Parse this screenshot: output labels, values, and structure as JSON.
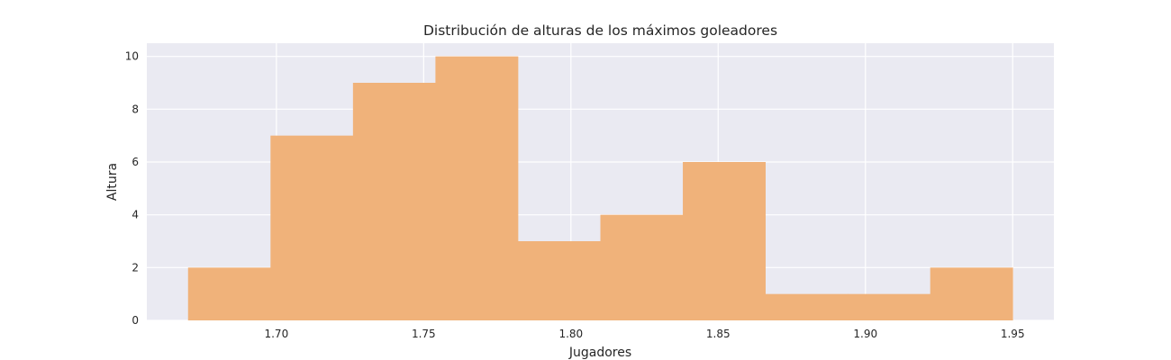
{
  "chart_data": {
    "type": "bar",
    "title": "Distribución de alturas de los máximos goleadores",
    "xlabel": "Jugadores",
    "ylabel": "Altura",
    "bins": [
      {
        "x0": 1.67,
        "x1": 1.698,
        "count": 2
      },
      {
        "x0": 1.698,
        "x1": 1.726,
        "count": 7
      },
      {
        "x0": 1.726,
        "x1": 1.754,
        "count": 9
      },
      {
        "x0": 1.754,
        "x1": 1.782,
        "count": 10
      },
      {
        "x0": 1.782,
        "x1": 1.81,
        "count": 3
      },
      {
        "x0": 1.81,
        "x1": 1.838,
        "count": 4
      },
      {
        "x0": 1.838,
        "x1": 1.866,
        "count": 6
      },
      {
        "x0": 1.866,
        "x1": 1.894,
        "count": 1
      },
      {
        "x0": 1.894,
        "x1": 1.922,
        "count": 1
      },
      {
        "x0": 1.922,
        "x1": 1.95,
        "count": 2
      }
    ],
    "xticks": [
      "1.70",
      "1.75",
      "1.80",
      "1.85",
      "1.90",
      "1.95"
    ],
    "yticks": [
      "0",
      "2",
      "4",
      "6",
      "8",
      "10"
    ],
    "xlim": [
      1.656,
      1.964
    ],
    "ylim": [
      0,
      10.5
    ],
    "grid": true,
    "colors": {
      "bar": "#f0b27a",
      "background": "#eaeaf2",
      "grid": "#ffffff"
    }
  }
}
